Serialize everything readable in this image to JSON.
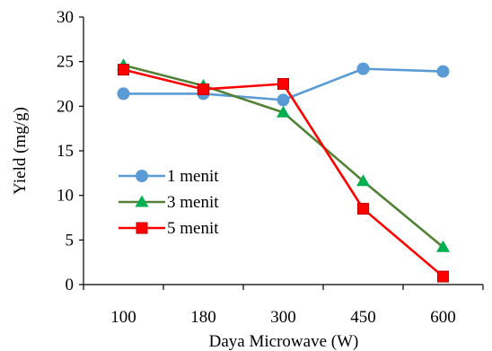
{
  "chart_data": {
    "type": "line",
    "categories": [
      "100",
      "180",
      "300",
      "450",
      "600"
    ],
    "series": [
      {
        "name": "1 menit",
        "values": [
          21.4,
          21.4,
          20.7,
          24.2,
          23.9
        ],
        "color": "#5B9BD5",
        "marker": "circle"
      },
      {
        "name": "3 menit",
        "values": [
          24.6,
          22.3,
          19.3,
          11.6,
          4.2
        ],
        "color": "#538135",
        "marker_color": "#00B050",
        "marker": "triangle"
      },
      {
        "name": "5 menit",
        "values": [
          24.1,
          21.9,
          22.5,
          8.5,
          0.9
        ],
        "color": "#FF0000",
        "marker": "square"
      }
    ],
    "xlabel": "Daya Microwave (W)",
    "ylabel": "Yield  (mg/g)",
    "ylim": [
      0,
      30
    ],
    "yticks": [
      "0",
      "5",
      "10",
      "15",
      "20",
      "25",
      "30"
    ],
    "grid": false,
    "legend_position": "center-left"
  }
}
